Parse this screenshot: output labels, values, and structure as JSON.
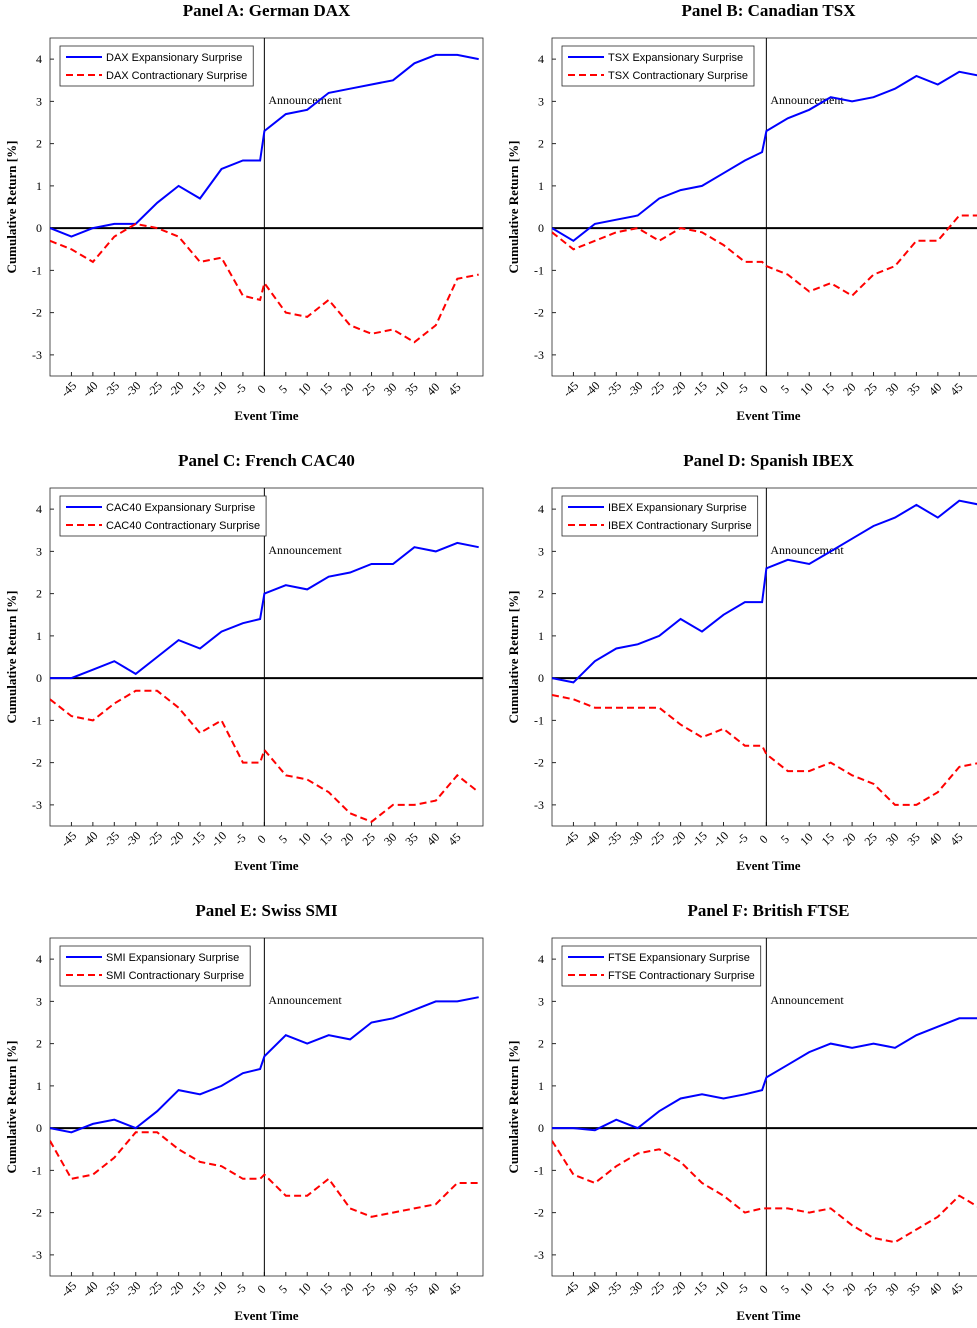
{
  "chart_data": [
    {
      "type": "line",
      "title": "Panel A: German DAX",
      "xlabel": "Event Time",
      "ylabel": "Cumulative Return [%]",
      "annotation": "Announcement",
      "legend": "upper left",
      "xlim": [
        -50,
        51
      ],
      "ylim": [
        -3.5,
        4.5
      ],
      "xticks": [
        -45,
        -40,
        -35,
        -30,
        -25,
        -20,
        -15,
        -10,
        -5,
        0,
        5,
        10,
        15,
        20,
        25,
        30,
        35,
        40,
        45
      ],
      "yticks": [
        -3,
        -2,
        -1,
        0,
        1,
        2,
        3,
        4
      ],
      "x": [
        -50,
        -45,
        -40,
        -35,
        -30,
        -25,
        -20,
        -15,
        -10,
        -5,
        -1,
        0,
        5,
        10,
        15,
        20,
        25,
        30,
        35,
        40,
        45,
        50
      ],
      "series": [
        {
          "name": "DAX Expansionary Surprise",
          "color": "#0000ff",
          "dash": "solid",
          "values": [
            0,
            -0.2,
            0.0,
            0.1,
            0.1,
            0.6,
            1.0,
            0.7,
            1.4,
            1.6,
            1.6,
            2.3,
            2.7,
            2.8,
            3.2,
            3.3,
            3.4,
            3.5,
            3.9,
            4.1,
            4.1,
            4.0
          ]
        },
        {
          "name": "DAX Contractionary Surprise",
          "color": "#ff0000",
          "dash": "dashed",
          "values": [
            -0.3,
            -0.5,
            -0.8,
            -0.2,
            0.1,
            0.0,
            -0.2,
            -0.8,
            -0.7,
            -1.6,
            -1.7,
            -1.3,
            -2.0,
            -2.1,
            -1.7,
            -2.3,
            -2.5,
            -2.4,
            -2.7,
            -2.3,
            -1.2,
            -1.1
          ]
        }
      ]
    },
    {
      "type": "line",
      "title": "Panel B: Canadian TSX",
      "xlabel": "Event Time",
      "ylabel": "Cumulative Return [%]",
      "annotation": "Announcement",
      "legend": "upper left",
      "xlim": [
        -50,
        51
      ],
      "ylim": [
        -3.5,
        4.5
      ],
      "xticks": [
        -45,
        -40,
        -35,
        -30,
        -25,
        -20,
        -15,
        -10,
        -5,
        0,
        5,
        10,
        15,
        20,
        25,
        30,
        35,
        40,
        45
      ],
      "yticks": [
        -3,
        -2,
        -1,
        0,
        1,
        2,
        3,
        4
      ],
      "x": [
        -50,
        -45,
        -40,
        -35,
        -30,
        -25,
        -20,
        -15,
        -10,
        -5,
        -1,
        0,
        5,
        10,
        15,
        20,
        25,
        30,
        35,
        40,
        45,
        50
      ],
      "series": [
        {
          "name": "TSX Expansionary Surprise",
          "color": "#0000ff",
          "dash": "solid",
          "values": [
            0,
            -0.3,
            0.1,
            0.2,
            0.3,
            0.7,
            0.9,
            1.0,
            1.3,
            1.6,
            1.8,
            2.3,
            2.6,
            2.8,
            3.1,
            3.0,
            3.1,
            3.3,
            3.6,
            3.4,
            3.7,
            3.6
          ]
        },
        {
          "name": "TSX Contractionary Surprise",
          "color": "#ff0000",
          "dash": "dashed",
          "values": [
            -0.1,
            -0.5,
            -0.3,
            -0.1,
            0.0,
            -0.3,
            0.0,
            -0.1,
            -0.4,
            -0.8,
            -0.8,
            -0.9,
            -1.1,
            -1.5,
            -1.3,
            -1.6,
            -1.1,
            -0.9,
            -0.3,
            -0.3,
            0.3,
            0.3
          ]
        }
      ]
    },
    {
      "type": "line",
      "title": "Panel C: French CAC40",
      "xlabel": "Event Time",
      "ylabel": "Cumulative Return [%]",
      "annotation": "Announcement",
      "legend": "upper left",
      "xlim": [
        -50,
        51
      ],
      "ylim": [
        -3.5,
        4.5
      ],
      "xticks": [
        -45,
        -40,
        -35,
        -30,
        -25,
        -20,
        -15,
        -10,
        -5,
        0,
        5,
        10,
        15,
        20,
        25,
        30,
        35,
        40,
        45
      ],
      "yticks": [
        -3,
        -2,
        -1,
        0,
        1,
        2,
        3,
        4
      ],
      "x": [
        -50,
        -45,
        -40,
        -35,
        -30,
        -25,
        -20,
        -15,
        -10,
        -5,
        -1,
        0,
        5,
        10,
        15,
        20,
        25,
        30,
        35,
        40,
        45,
        50
      ],
      "series": [
        {
          "name": "CAC40 Expansionary Surprise",
          "color": "#0000ff",
          "dash": "solid",
          "values": [
            0.0,
            0.0,
            0.2,
            0.4,
            0.1,
            0.5,
            0.9,
            0.7,
            1.1,
            1.3,
            1.4,
            2.0,
            2.2,
            2.1,
            2.4,
            2.5,
            2.7,
            2.7,
            3.1,
            3.0,
            3.2,
            3.1
          ]
        },
        {
          "name": "CAC40 Contractionary Surprise",
          "color": "#ff0000",
          "dash": "dashed",
          "values": [
            -0.5,
            -0.9,
            -1.0,
            -0.6,
            -0.3,
            -0.3,
            -0.7,
            -1.3,
            -1.0,
            -2.0,
            -2.0,
            -1.7,
            -2.3,
            -2.4,
            -2.7,
            -3.2,
            -3.4,
            -3.0,
            -3.0,
            -2.9,
            -2.3,
            -2.7
          ]
        }
      ]
    },
    {
      "type": "line",
      "title": "Panel D: Spanish IBEX",
      "xlabel": "Event Time",
      "ylabel": "Cumulative Return [%]",
      "annotation": "Announcement",
      "legend": "upper left",
      "xlim": [
        -50,
        51
      ],
      "ylim": [
        -3.5,
        4.5
      ],
      "xticks": [
        -45,
        -40,
        -35,
        -30,
        -25,
        -20,
        -15,
        -10,
        -5,
        0,
        5,
        10,
        15,
        20,
        25,
        30,
        35,
        40,
        45
      ],
      "yticks": [
        -3,
        -2,
        -1,
        0,
        1,
        2,
        3,
        4
      ],
      "x": [
        -50,
        -45,
        -40,
        -35,
        -30,
        -25,
        -20,
        -15,
        -10,
        -5,
        -1,
        0,
        5,
        10,
        15,
        20,
        25,
        30,
        35,
        40,
        45,
        50
      ],
      "series": [
        {
          "name": "IBEX Expansionary Surprise",
          "color": "#0000ff",
          "dash": "solid",
          "values": [
            0.0,
            -0.1,
            0.4,
            0.7,
            0.8,
            1.0,
            1.4,
            1.1,
            1.5,
            1.8,
            1.8,
            2.6,
            2.8,
            2.7,
            3.0,
            3.3,
            3.6,
            3.8,
            4.1,
            3.8,
            4.2,
            4.1
          ]
        },
        {
          "name": "IBEX Contractionary Surprise",
          "color": "#ff0000",
          "dash": "dashed",
          "values": [
            -0.4,
            -0.5,
            -0.7,
            -0.7,
            -0.7,
            -0.7,
            -1.1,
            -1.4,
            -1.2,
            -1.6,
            -1.6,
            -1.8,
            -2.2,
            -2.2,
            -2.0,
            -2.3,
            -2.5,
            -3.0,
            -3.0,
            -2.7,
            -2.1,
            -2.0
          ]
        }
      ]
    },
    {
      "type": "line",
      "title": "Panel E: Swiss SMI",
      "xlabel": "Event Time",
      "ylabel": "Cumulative Return [%]",
      "annotation": "Announcement",
      "legend": "upper left",
      "xlim": [
        -50,
        51
      ],
      "ylim": [
        -3.5,
        4.5
      ],
      "xticks": [
        -45,
        -40,
        -35,
        -30,
        -25,
        -20,
        -15,
        -10,
        -5,
        0,
        5,
        10,
        15,
        20,
        25,
        30,
        35,
        40,
        45
      ],
      "yticks": [
        -3,
        -2,
        -1,
        0,
        1,
        2,
        3,
        4
      ],
      "x": [
        -50,
        -45,
        -40,
        -35,
        -30,
        -25,
        -20,
        -15,
        -10,
        -5,
        -1,
        0,
        5,
        10,
        15,
        20,
        25,
        30,
        35,
        40,
        45,
        50
      ],
      "series": [
        {
          "name": "SMI Expansionary Surprise",
          "color": "#0000ff",
          "dash": "solid",
          "values": [
            0.0,
            -0.1,
            0.1,
            0.2,
            0.0,
            0.4,
            0.9,
            0.8,
            1.0,
            1.3,
            1.4,
            1.7,
            2.2,
            2.0,
            2.2,
            2.1,
            2.5,
            2.6,
            2.8,
            3.0,
            3.0,
            3.1
          ]
        },
        {
          "name": "SMI Contractionary Surprise",
          "color": "#ff0000",
          "dash": "dashed",
          "values": [
            -0.3,
            -1.2,
            -1.1,
            -0.7,
            -0.1,
            -0.1,
            -0.5,
            -0.8,
            -0.9,
            -1.2,
            -1.2,
            -1.1,
            -1.6,
            -1.6,
            -1.2,
            -1.9,
            -2.1,
            -2.0,
            -1.9,
            -1.8,
            -1.3,
            -1.3
          ]
        }
      ]
    },
    {
      "type": "line",
      "title": "Panel F: British FTSE",
      "xlabel": "Event Time",
      "ylabel": "Cumulative Return [%]",
      "annotation": "Announcement",
      "legend": "upper left",
      "xlim": [
        -50,
        51
      ],
      "ylim": [
        -3.5,
        4.5
      ],
      "xticks": [
        -45,
        -40,
        -35,
        -30,
        -25,
        -20,
        -15,
        -10,
        -5,
        0,
        5,
        10,
        15,
        20,
        25,
        30,
        35,
        40,
        45
      ],
      "yticks": [
        -3,
        -2,
        -1,
        0,
        1,
        2,
        3,
        4
      ],
      "x": [
        -50,
        -45,
        -40,
        -35,
        -30,
        -25,
        -20,
        -15,
        -10,
        -5,
        -1,
        0,
        5,
        10,
        15,
        20,
        25,
        30,
        35,
        40,
        45,
        50
      ],
      "series": [
        {
          "name": "FTSE Expansionary Surprise",
          "color": "#0000ff",
          "dash": "solid",
          "values": [
            0.0,
            0.0,
            -0.05,
            0.2,
            0.0,
            0.4,
            0.7,
            0.8,
            0.7,
            0.8,
            0.9,
            1.2,
            1.5,
            1.8,
            2.0,
            1.9,
            2.0,
            1.9,
            2.2,
            2.4,
            2.6,
            2.6
          ]
        },
        {
          "name": "FTSE Contractionary Surprise",
          "color": "#ff0000",
          "dash": "dashed",
          "values": [
            -0.3,
            -1.1,
            -1.3,
            -0.9,
            -0.6,
            -0.5,
            -0.8,
            -1.3,
            -1.6,
            -2.0,
            -1.9,
            -1.9,
            -1.9,
            -2.0,
            -1.9,
            -2.3,
            -2.6,
            -2.7,
            -2.4,
            -2.1,
            -1.6,
            -1.9
          ]
        }
      ]
    }
  ]
}
